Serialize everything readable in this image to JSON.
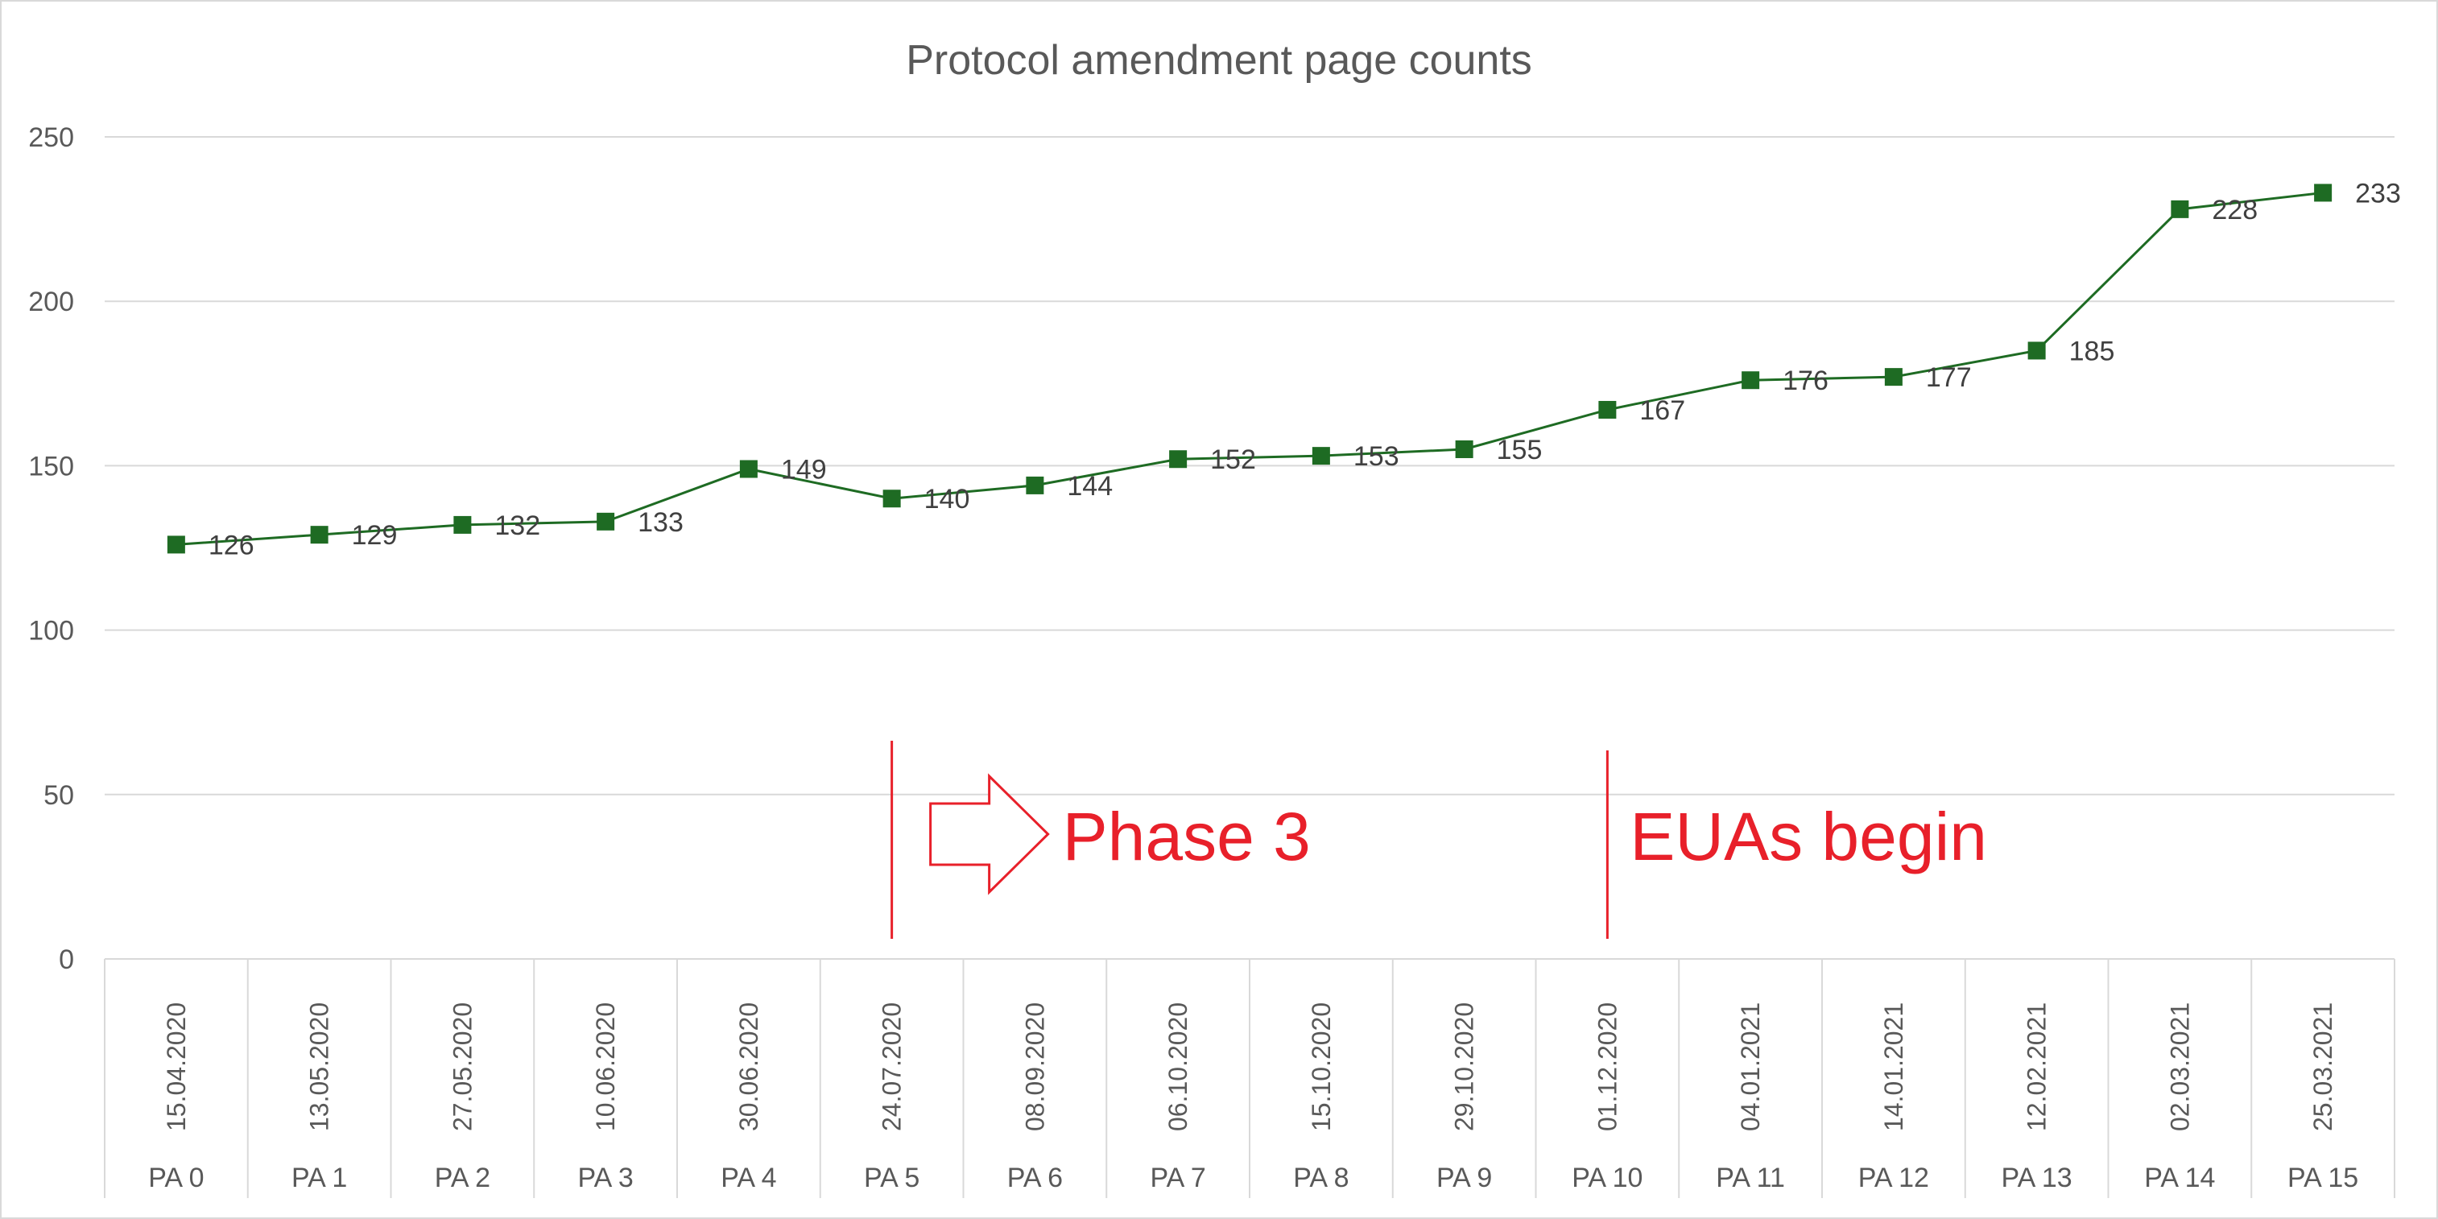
{
  "chart_data": {
    "type": "line",
    "title": "Protocol amendment page counts",
    "xlabel": "",
    "ylabel": "",
    "ylim": [
      0,
      250
    ],
    "yticks": [
      0,
      50,
      100,
      150,
      200,
      250
    ],
    "grid": true,
    "legend": "none",
    "categories": [
      "PA 0",
      "PA 1",
      "PA 2",
      "PA 3",
      "PA 4",
      "PA 5",
      "PA 6",
      "PA 7",
      "PA 8",
      "PA 9",
      "PA 10",
      "PA 11",
      "PA 12",
      "PA 13",
      "PA 14",
      "PA 15"
    ],
    "dates": [
      "15.04.2020",
      "13.05.2020",
      "27.05.2020",
      "10.06.2020",
      "30.06.2020",
      "24.07.2020",
      "08.09.2020",
      "06.10.2020",
      "15.10.2020",
      "29.10.2020",
      "01.12.2020",
      "04.01.2021",
      "14.01.2021",
      "12.02.2021",
      "02.03.2021",
      "25.03.2021"
    ],
    "series": [
      {
        "values": [
          126,
          129,
          132,
          133,
          149,
          140,
          144,
          152,
          153,
          155,
          167,
          176,
          177,
          185,
          228,
          233
        ],
        "color": "#1e6b23",
        "marker": "square"
      }
    ],
    "annotations": [
      {
        "text": "Phase 3",
        "at_category": "PA 5",
        "color": "#e8202a",
        "arrow": true
      },
      {
        "text": "EUAs begin",
        "at_category": "PA 10",
        "color": "#e8202a",
        "arrow": false
      }
    ]
  }
}
